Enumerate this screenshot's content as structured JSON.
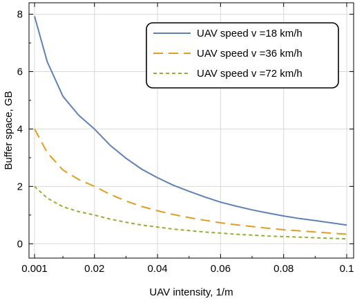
{
  "chart_data": {
    "type": "line",
    "xlabel": "UAV intensity, 1/m",
    "ylabel": "Buffer space, GB",
    "xlim": [
      0.001,
      0.1
    ],
    "ylim": [
      -0.5,
      8.4
    ],
    "xticks": [
      0.001,
      0.02,
      0.04,
      0.06,
      0.08,
      0.1
    ],
    "xtick_labels": [
      "0.001",
      "0.02",
      "0.04",
      "0.06",
      "0.08",
      "0.1"
    ],
    "yticks": [
      0,
      2,
      4,
      6,
      8
    ],
    "ytick_labels": [
      "0",
      "2",
      "4",
      "6",
      "8"
    ],
    "grid": true,
    "legend_position": "top-right",
    "x": [
      0.001,
      0.005,
      0.01,
      0.015,
      0.02,
      0.025,
      0.03,
      0.035,
      0.04,
      0.045,
      0.05,
      0.055,
      0.06,
      0.065,
      0.07,
      0.075,
      0.08,
      0.085,
      0.09,
      0.095,
      0.1
    ],
    "series": [
      {
        "name": "UAV speed v =18 km/h",
        "color": "#5e81b5",
        "style": "solid",
        "values": [
          7.93,
          6.35,
          5.14,
          4.48,
          4.0,
          3.43,
          2.98,
          2.6,
          2.3,
          2.04,
          1.83,
          1.63,
          1.45,
          1.31,
          1.18,
          1.07,
          0.97,
          0.88,
          0.81,
          0.73,
          0.65
        ]
      },
      {
        "name": "UAV speed v =36 km/h",
        "color": "#e19c24",
        "style": "dashed",
        "values": [
          4.0,
          3.18,
          2.57,
          2.24,
          2.0,
          1.72,
          1.49,
          1.3,
          1.15,
          1.02,
          0.91,
          0.82,
          0.73,
          0.66,
          0.6,
          0.54,
          0.49,
          0.45,
          0.41,
          0.37,
          0.33
        ]
      },
      {
        "name": "UAV speed v =72 km/h",
        "color": "#8fb032",
        "style": "dotted",
        "values": [
          2.0,
          1.59,
          1.29,
          1.12,
          1.0,
          0.86,
          0.75,
          0.65,
          0.58,
          0.51,
          0.46,
          0.41,
          0.37,
          0.33,
          0.3,
          0.27,
          0.25,
          0.23,
          0.21,
          0.19,
          0.17
        ]
      }
    ]
  }
}
